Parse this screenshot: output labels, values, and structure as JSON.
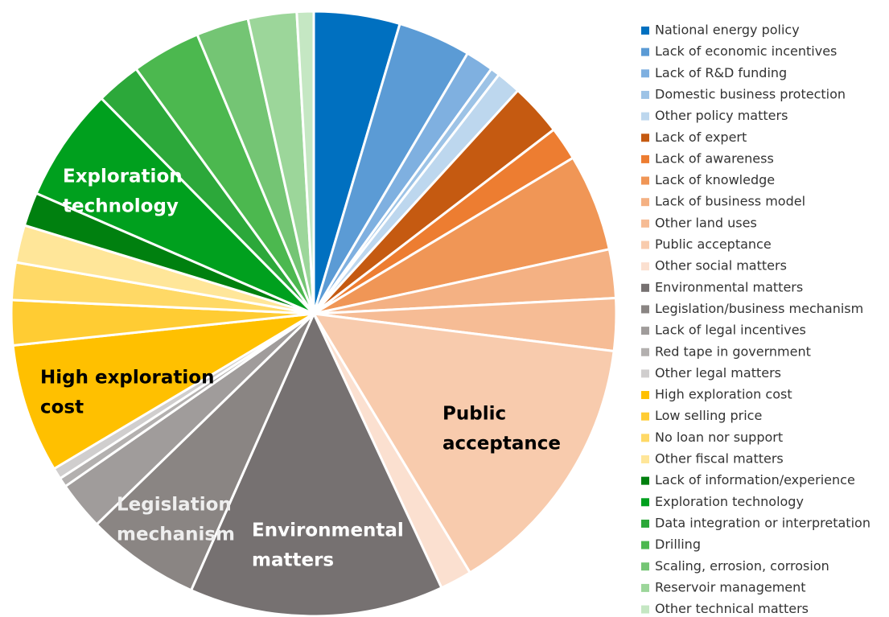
{
  "chart_data": {
    "type": "pie",
    "categories": [
      "National energy policy",
      "Lack of economic incentives",
      "Lack of R&D funding",
      "Domestic business protection",
      "Other policy matters",
      "Lack of expert",
      "Lack of awareness",
      "Lack of knowledge",
      "Lack of business model",
      "Other land uses",
      "Public acceptance",
      "Other social matters",
      "Environmental matters",
      "Legislation/business mechanism",
      "Lack of legal incentives",
      "Red tape in government",
      "Other legal matters",
      "High exploration cost",
      "Low selling price",
      "No loan nor support",
      "Other fiscal matters",
      "Lack of information/experience",
      "Exploration technology",
      "Data integration or interpretation",
      "Drilling",
      "Scaling, errosion, corrosion",
      "Reservoir management",
      "Other technical matters"
    ],
    "values": [
      4.6,
      3.9,
      1.5,
      0.5,
      1.3,
      2.8,
      1.8,
      5.2,
      2.6,
      2.8,
      14.4,
      1.7,
      13.6,
      6.1,
      2.6,
      0.5,
      0.6,
      6.9,
      2.4,
      2.0,
      2.0,
      1.8,
      6.1,
      2.4,
      3.7,
      2.8,
      2.6,
      0.9
    ],
    "colors": [
      "#0070c0",
      "#5b9bd5",
      "#7fb0e0",
      "#9dc3e6",
      "#bdd7ee",
      "#c55a11",
      "#ed7d31",
      "#f09656",
      "#f4b183",
      "#f6bc95",
      "#f8cbad",
      "#fbe0d0",
      "#767171",
      "#8a8583",
      "#a09c9b",
      "#b3b0af",
      "#d0cece",
      "#ffc000",
      "#ffcc33",
      "#ffd966",
      "#ffe699",
      "#00800f",
      "#00a01e",
      "#2ca83a",
      "#4cb84f",
      "#74c574",
      "#9cd69a",
      "#c5e7c3"
    ],
    "annotations": [
      [
        "Exploration",
        "technology"
      ],
      [
        "High exploration",
        "cost"
      ],
      [
        "Legislation",
        "mechanism"
      ],
      [
        "Environmental",
        "matters"
      ],
      [
        "Public",
        "acceptance"
      ]
    ]
  }
}
